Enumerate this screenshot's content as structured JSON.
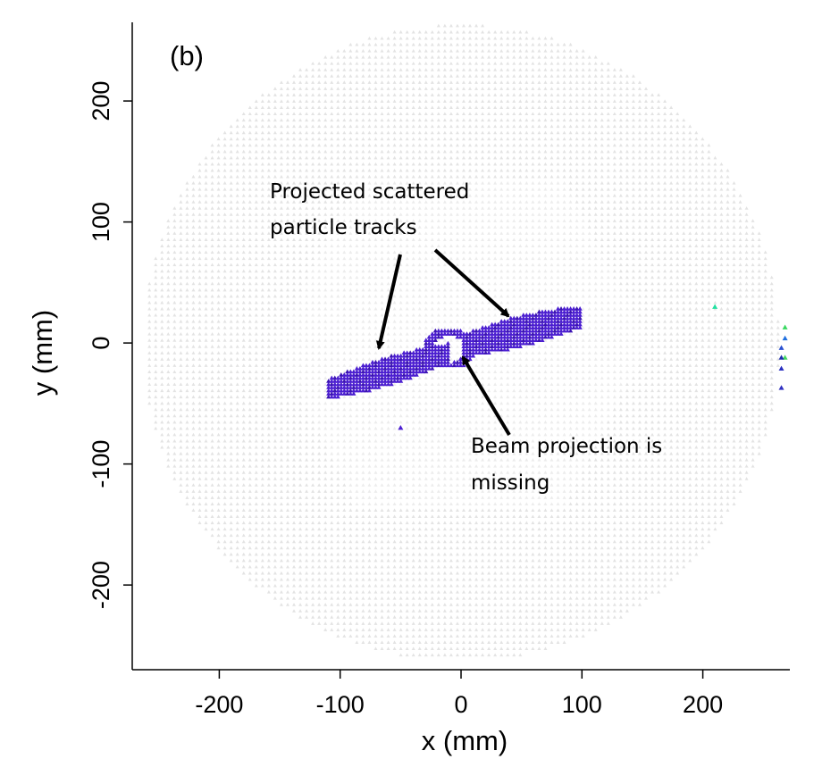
{
  "chart_data": {
    "type": "scatter",
    "panel_label": "(b)",
    "title": "",
    "xlabel": "x (mm)",
    "ylabel": "y (mm)",
    "xlim": [
      -272,
      272
    ],
    "ylim": [
      -270,
      265
    ],
    "xticks": [
      -200,
      -100,
      0,
      100,
      200
    ],
    "yticks": [
      -200,
      -100,
      0,
      100,
      200
    ],
    "xtick_labels": [
      "-200",
      "-100",
      "0",
      "100",
      "200"
    ],
    "ytick_labels": [
      "-200",
      "-100",
      "0",
      "100",
      "200"
    ],
    "grid": false,
    "legend": "none",
    "marker": "triangle",
    "colors": {
      "detector_outer": "#e3e3e3",
      "detector_inner": "#ececec",
      "tracks": "#4b1ed0",
      "tracks_dark": "#3c14b4"
    },
    "detector_background": {
      "outer_radius": 263,
      "inner_hexagon": {
        "center": [
          0,
          0
        ],
        "x_extent": [
          -155,
          155
        ],
        "y_extent": [
          -135,
          135
        ]
      },
      "beam_gap_center": [
        -10,
        -5
      ]
    },
    "series": [
      {
        "name": "",
        "region": "left track",
        "x_range": [
          -110,
          -10
        ],
        "y_range": [
          -50,
          -5
        ],
        "color": "#4b1ed0"
      },
      {
        "name": "",
        "region": "right track",
        "x_range": [
          0,
          100
        ],
        "y_range": [
          -10,
          30
        ],
        "color": "#4b1ed0"
      },
      {
        "name": "",
        "region": "isolated hits",
        "points": [
          {
            "x": 210,
            "y": 30,
            "color": "#22e0a0"
          },
          {
            "x": 268,
            "y": 13,
            "color": "#38d860"
          },
          {
            "x": 268,
            "y": 4,
            "color": "#2070e0"
          },
          {
            "x": 265,
            "y": -4,
            "color": "#2a50d0"
          },
          {
            "x": 268,
            "y": -12,
            "color": "#44d860"
          },
          {
            "x": 265,
            "y": -12,
            "color": "#2030b0"
          },
          {
            "x": 265,
            "y": -21,
            "color": "#2a30c0"
          },
          {
            "x": 265,
            "y": -37,
            "color": "#3030c0"
          },
          {
            "x": -50,
            "y": -70,
            "color": "#4b1ed0"
          }
        ]
      }
    ],
    "annotations": [
      {
        "lines": [
          "Projected scattered",
          "particle tracks"
        ]
      },
      {
        "lines": [
          "Beam projection is",
          "missing"
        ]
      }
    ]
  }
}
